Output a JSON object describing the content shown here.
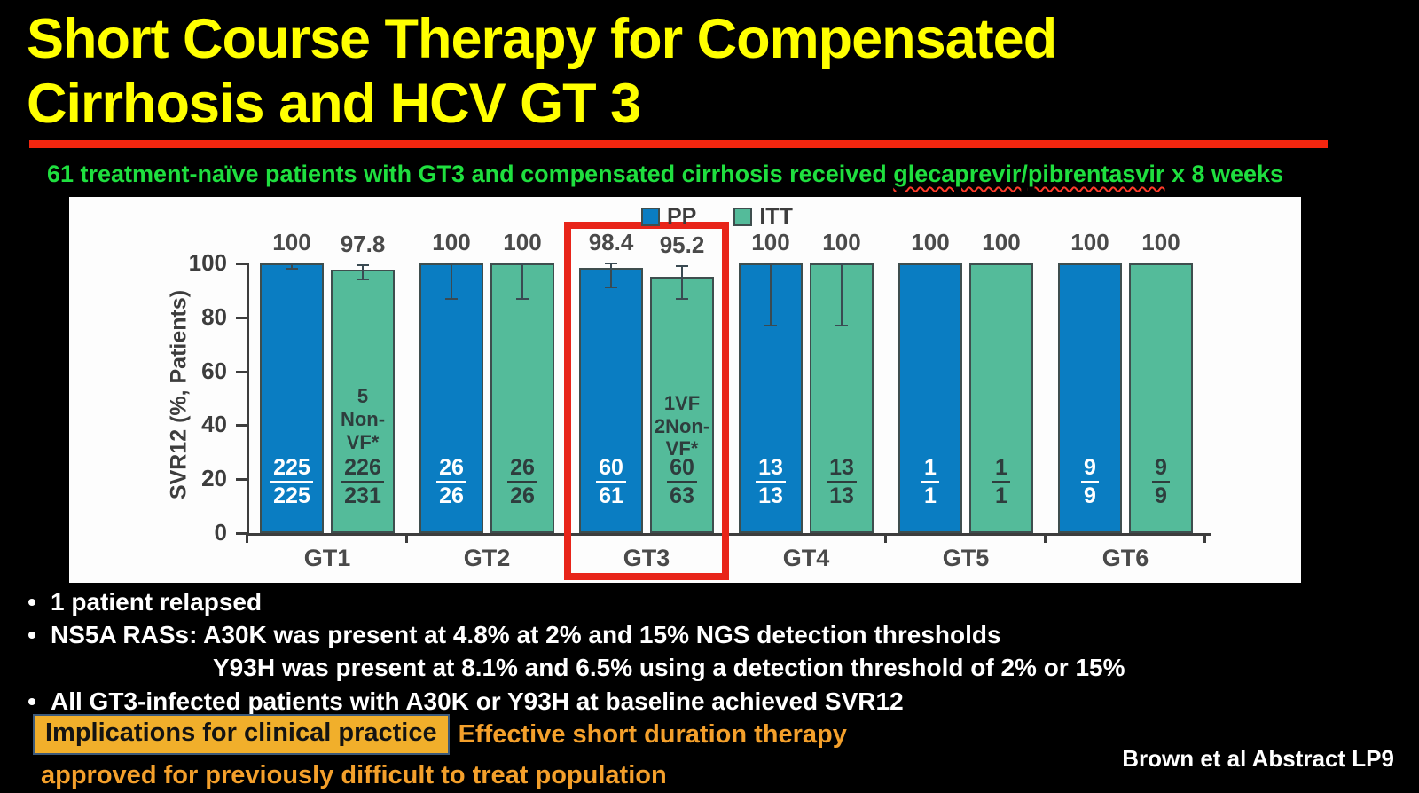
{
  "title": {
    "line1": "Short Course Therapy for Compensated",
    "line2": "Cirrhosis and HCV GT 3"
  },
  "subtitle": {
    "prefix": "61 treatment-naïve patients with GT3 and compensated cirrhosis received ",
    "drug1": "glecaprevir",
    "slash": "/",
    "drug2": "pibrentasvir",
    "suffix": " x 8 weeks"
  },
  "chart_data": {
    "type": "bar",
    "title": "",
    "xlabel": "",
    "ylabel": "SVR12 (%, Patients)",
    "ylim": [
      0,
      100
    ],
    "yticks": [
      0,
      20,
      40,
      60,
      80,
      100
    ],
    "grid": false,
    "legend_position": "top",
    "categories": [
      "GT1",
      "GT2",
      "GT3",
      "GT4",
      "GT5",
      "GT6"
    ],
    "highlight_category": "GT3",
    "series": [
      {
        "name": "PP",
        "color": "#0a7dc2",
        "values": [
          100,
          100,
          98.4,
          100,
          100,
          100
        ],
        "value_labels": [
          "100",
          "100",
          "98.4",
          "100",
          "100",
          "100"
        ],
        "fractions": [
          [
            "225",
            "225"
          ],
          [
            "26",
            "26"
          ],
          [
            "60",
            "61"
          ],
          [
            "13",
            "13"
          ],
          [
            "1",
            "1"
          ],
          [
            "9",
            "9"
          ]
        ],
        "error_bars": [
          {
            "low": 98,
            "high": 100
          },
          {
            "low": 87,
            "high": 100
          },
          {
            "low": 91,
            "high": 100
          },
          {
            "low": 77,
            "high": 100
          },
          null,
          null
        ],
        "annotations": [
          null,
          null,
          null,
          null,
          null,
          null
        ],
        "fraction_text_color": "#ffffff"
      },
      {
        "name": "ITT",
        "color": "#54bb9a",
        "values": [
          97.8,
          100,
          95.2,
          100,
          100,
          100
        ],
        "value_labels": [
          "97.8",
          "100",
          "95.2",
          "100",
          "100",
          "100"
        ],
        "fractions": [
          [
            "226",
            "231"
          ],
          [
            "26",
            "26"
          ],
          [
            "60",
            "63"
          ],
          [
            "13",
            "13"
          ],
          [
            "1",
            "1"
          ],
          [
            "9",
            "9"
          ]
        ],
        "error_bars": [
          {
            "low": 94,
            "high": 99.5
          },
          {
            "low": 87,
            "high": 100
          },
          {
            "low": 87,
            "high": 99
          },
          {
            "low": 77,
            "high": 100
          },
          null,
          null
        ],
        "annotations": [
          "5\nNon-\nVF*",
          null,
          "1VF\n2Non-\nVF*",
          null,
          null,
          null
        ],
        "fraction_text_color": "#2e3d3d"
      }
    ]
  },
  "bullets": [
    {
      "marker": "•",
      "text": "1 patient relapsed"
    },
    {
      "marker": "•",
      "text": "NS5A RASs: A30K was present at 4.8% at 2% and 15% NGS detection thresholds"
    },
    {
      "marker": "",
      "text": "Y93H was present at 8.1% and 6.5% using a detection threshold of 2% or 15%"
    },
    {
      "marker": "•",
      "text": "All GT3-infected patients with A30K or Y93H at baseline achieved SVR12"
    }
  ],
  "implications": {
    "highlight_label": "Implications for clinical practice",
    "text_line1": "Effective short duration therapy",
    "text_line2": "approved for previously difficult to treat population"
  },
  "credit": "Brown et al Abstract LP9",
  "colors": {
    "title_yellow": "#ffff00",
    "underline_red": "#f3260f",
    "subtitle_green": "#1fdf3f",
    "squiggle_red": "#ff3b2a",
    "pp_blue": "#0a7dc2",
    "itt_teal": "#54bb9a",
    "highlight_box_red": "#e8251a",
    "implication_fill": "#f1af2b",
    "implication_text": "#f4a02b"
  }
}
